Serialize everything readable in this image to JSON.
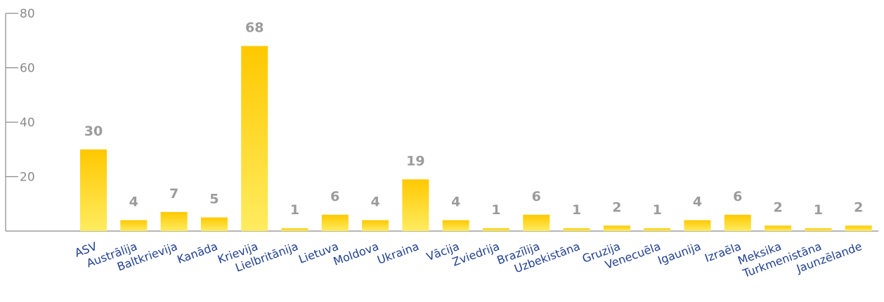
{
  "chart_data": {
    "type": "bar",
    "categories": [
      "ASV",
      "Austrālija",
      "Baltkrievija",
      "Kanāda",
      "Krievija",
      "Lielbritānija",
      "Lietuva",
      "Moldova",
      "Ukraina",
      "Vācija",
      "Zviedrija",
      "Brazīlija",
      "Uzbekistāna",
      "Gruzija",
      "Venecuēla",
      "Igaunija",
      "Izraēla",
      "Meksika",
      "Turkmenistāna",
      "Jaunzēlande"
    ],
    "values": [
      30,
      4,
      7,
      5,
      68,
      1,
      6,
      4,
      19,
      4,
      1,
      6,
      1,
      2,
      1,
      4,
      6,
      2,
      1,
      2
    ],
    "yticks": [
      20,
      40,
      60,
      80
    ],
    "ylim": [
      0,
      80
    ],
    "grid": false,
    "legend": "none",
    "colors": {
      "bar_top": "#ffc800",
      "bar_bottom": "#ffec60",
      "value_label": "#9b9b9b",
      "category_label": "#1f3f8f",
      "axis": "#8a8a8a"
    }
  }
}
